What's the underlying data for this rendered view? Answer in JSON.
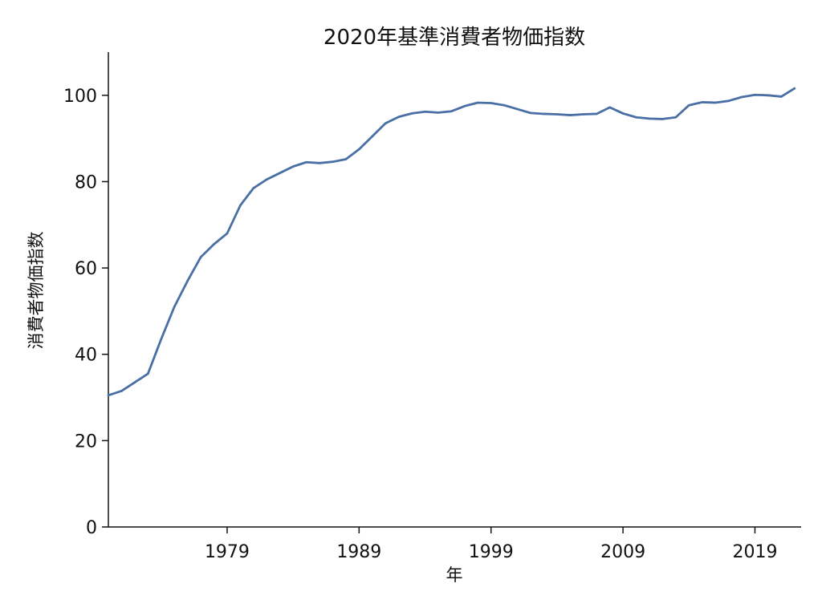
{
  "chart_data": {
    "type": "line",
    "title": "2020年基準消費者物価指数",
    "xlabel": "年",
    "ylabel": "消費者物価指数",
    "xlim": [
      1970,
      2022.5
    ],
    "ylim": [
      0,
      110
    ],
    "x_ticks": [
      1979,
      1989,
      1999,
      2009,
      2019
    ],
    "y_ticks": [
      0,
      20,
      40,
      60,
      80,
      100
    ],
    "grid": false,
    "legend": "none",
    "line_color": "#4a6fa5",
    "series": [
      {
        "x": [
          1970,
          1971,
          1972,
          1973,
          1974,
          1975,
          1976,
          1977,
          1978,
          1979,
          1980,
          1981,
          1982,
          1983,
          1984,
          1985,
          1986,
          1987,
          1988,
          1989,
          1990,
          1991,
          1992,
          1993,
          1994,
          1995,
          1996,
          1997,
          1998,
          1999,
          2000,
          2001,
          2002,
          2003,
          2004,
          2005,
          2006,
          2007,
          2008,
          2009,
          2010,
          2011,
          2012,
          2013,
          2014,
          2015,
          2016,
          2017,
          2018,
          2019,
          2020,
          2021,
          2022
        ],
        "values": [
          30.5,
          31.5,
          33.5,
          35.5,
          43.5,
          51.0,
          57.0,
          62.5,
          65.5,
          68.0,
          74.5,
          78.5,
          80.5,
          82.0,
          83.5,
          84.5,
          84.3,
          84.6,
          85.2,
          87.5,
          90.5,
          93.5,
          95.0,
          95.8,
          96.2,
          96.0,
          96.3,
          97.5,
          98.3,
          98.2,
          97.7,
          96.8,
          95.9,
          95.7,
          95.6,
          95.4,
          95.6,
          95.7,
          97.2,
          95.8,
          94.9,
          94.6,
          94.5,
          94.9,
          97.7,
          98.4,
          98.3,
          98.7,
          99.6,
          100.1,
          100.0,
          99.7,
          101.6
        ]
      }
    ]
  }
}
